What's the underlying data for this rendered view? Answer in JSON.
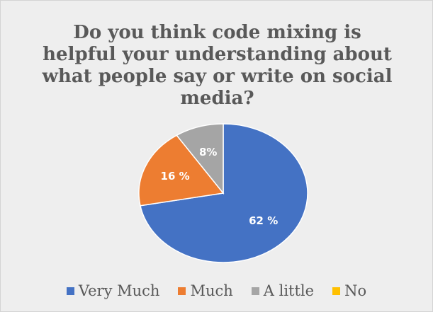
{
  "chart_data": {
    "type": "pie",
    "title_lines": [
      "Do you think code mixing is",
      "helpful your understanding about",
      "what people say or write on social",
      "media?"
    ],
    "categories": [
      "Very Much",
      "Much",
      "A little",
      "No"
    ],
    "values": [
      62,
      16,
      8,
      0
    ],
    "data_labels": [
      "62 %",
      "16 %",
      "8%",
      ""
    ],
    "colors": [
      "#4472C4",
      "#ED7D31",
      "#A5A5A5",
      "#FFC000"
    ],
    "legend_position": "bottom"
  }
}
